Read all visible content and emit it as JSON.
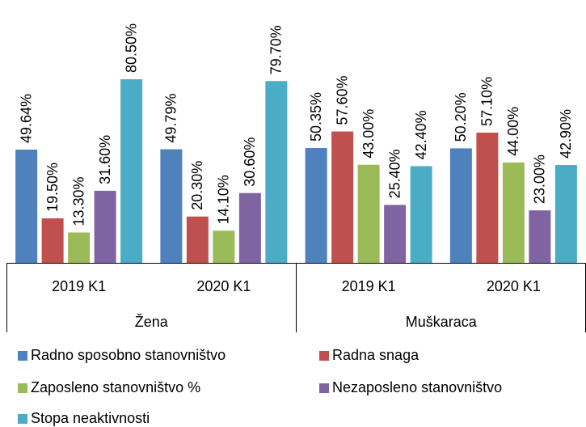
{
  "chart_data": {
    "type": "bar",
    "categories": [
      "2019 K1",
      "2020 K1",
      "2019 K1",
      "2020 K1"
    ],
    "group_labels": [
      "Žena",
      "Muškaraca"
    ],
    "ylim": [
      0,
      100
    ],
    "series": [
      {
        "name": "Radno sposobno stanovništvo",
        "color": "#4f81bd",
        "values": [
          49.64,
          49.79,
          50.35,
          50.2
        ],
        "value_labels": [
          "49.64%",
          "49.79%",
          "50.35%",
          "50.20%"
        ]
      },
      {
        "name": "Radna snaga",
        "color": "#c0504d",
        "values": [
          19.5,
          20.3,
          57.6,
          57.1
        ],
        "value_labels": [
          "19.50%",
          "20.30%",
          "57.60%",
          "57.10%"
        ]
      },
      {
        "name": "Zaposleno stanovništvo %",
        "color": "#9bbb59",
        "values": [
          13.3,
          14.1,
          43.0,
          44.0
        ],
        "value_labels": [
          "13.30%",
          "14.10%",
          "43.00%",
          "44.00%"
        ]
      },
      {
        "name": "Nezaposleno stanovništvo",
        "color": "#8064a2",
        "values": [
          31.6,
          30.6,
          25.4,
          23.0
        ],
        "value_labels": [
          "31.60%",
          "30.60%",
          "25.40%",
          "23.00%"
        ]
      },
      {
        "name": "Stopa neaktivnosti",
        "color": "#4bacc6",
        "values": [
          80.5,
          79.7,
          42.4,
          42.9
        ],
        "value_labels": [
          "80.50%",
          "79.70%",
          "42.40%",
          "42.90%"
        ]
      }
    ]
  }
}
